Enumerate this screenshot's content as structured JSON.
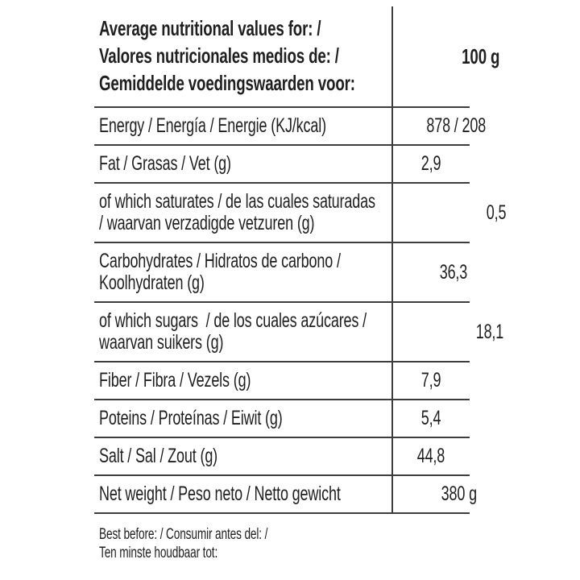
{
  "table": {
    "header": {
      "label": "Average nutritional values for: /\nValores nutricionales medios de: /\nGemiddelde voedingswaarden voor:",
      "value": "100 g"
    },
    "rows": [
      {
        "label": "Energy / Energía / Energie (KJ/kcal)",
        "value": "878 / 208"
      },
      {
        "label": "Fat / Grasas / Vet (g)",
        "value": "2,9"
      },
      {
        "label": "of which saturates / de las cuales saturadas\n/ waarvan verzadigde vetzuren (g)",
        "value": "0,5"
      },
      {
        "label": "Carbohydrates / Hidratos de carbono /\nKoolhydraten (g)",
        "value": "36,3"
      },
      {
        "label": "of which sugars  / de los cuales azúcares /\nwaarvan suikers (g)",
        "value": "18,1"
      },
      {
        "label": "Fiber / Fibra / Vezels (g)",
        "value": "7,9"
      },
      {
        "label": "Poteins / Proteínas / Eiwit (g)",
        "value": "5,4"
      },
      {
        "label": "Salt / Sal / Zout (g)",
        "value": "44,8"
      },
      {
        "label": "Net weight / Peso neto / Netto gewicht",
        "value": "380 g"
      }
    ],
    "footer": "Best before: / Consumir antes del: /\nTen minste houdbaar tot:"
  },
  "colors": {
    "background": "#ffffff",
    "text": "#1f1f1f",
    "rule": "#3d3d3d"
  }
}
